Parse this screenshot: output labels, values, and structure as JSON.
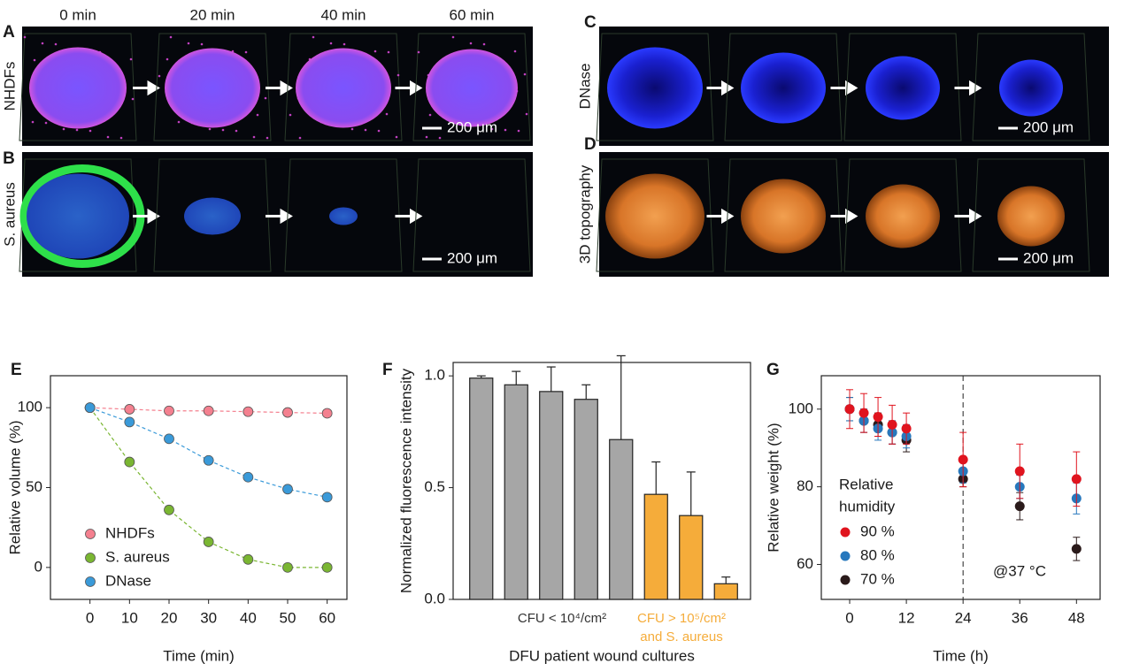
{
  "image_panels": {
    "time_labels": [
      "0 min",
      "20 min",
      "40 min",
      "60 min"
    ],
    "panels": [
      {
        "letter": "A",
        "row_label": "NHDFs",
        "scale_bar": "200 μm"
      },
      {
        "letter": "B",
        "row_label": "S. aureus",
        "scale_bar": "200 μm"
      },
      {
        "letter": "C",
        "row_label": "DNase",
        "scale_bar": "200 μm"
      },
      {
        "letter": "D",
        "row_label": "3D topography",
        "scale_bar": "200 μm"
      }
    ]
  },
  "chart_data": [
    {
      "type": "line",
      "letter": "E",
      "xlabel": "Time (min)",
      "ylabel": "Relative volume (%)",
      "x": [
        0,
        10,
        20,
        30,
        40,
        50,
        60
      ],
      "xlim": [
        -10,
        65
      ],
      "xticks": [
        0,
        10,
        20,
        30,
        40,
        50,
        60
      ],
      "ylim": [
        -20,
        120
      ],
      "yticks": [
        0,
        50,
        100
      ],
      "line_style": "dashed",
      "legend": "lower left",
      "series": [
        {
          "name": "NHDFs",
          "color": "#f4808f",
          "values": [
            100,
            99,
            98,
            98,
            97.5,
            97,
            96.5
          ]
        },
        {
          "name": "S. aureus",
          "color": "#7ab632",
          "values": [
            100,
            66,
            36,
            16,
            5,
            0,
            0
          ]
        },
        {
          "name": "DNase",
          "color": "#3a9ad9",
          "values": [
            100,
            91,
            80.5,
            67,
            56.5,
            49,
            44
          ]
        }
      ]
    },
    {
      "type": "bar",
      "letter": "F",
      "xlabel": "DFU patient wound cultures",
      "ylabel": "Normalized fluorescence intensity",
      "categories": [
        null,
        null,
        null,
        null,
        null,
        null,
        null,
        null
      ],
      "values": [
        0.99,
        0.96,
        0.93,
        0.895,
        0.715,
        0.47,
        0.375,
        0.07
      ],
      "errors": [
        0.01,
        0.06,
        0.11,
        0.065,
        0.375,
        0.145,
        0.195,
        0.03
      ],
      "colors": [
        "#a6a6a6",
        "#a6a6a6",
        "#a6a6a6",
        "#a6a6a6",
        "#a6a6a6",
        "#f5ac3a",
        "#f5ac3a",
        "#f5ac3a"
      ],
      "ylim": [
        0,
        1.06
      ],
      "yticks": [
        {
          "value": 0,
          "label": "0.0"
        },
        {
          "value": 0.5,
          "label": "0.5"
        },
        {
          "value": 1,
          "label": "1.0"
        }
      ],
      "group_labels": [
        {
          "lines": [
            "CFU < 10⁴/cm²"
          ],
          "color": "#333333"
        },
        {
          "lines": [
            "CFU > 10⁵/cm²",
            "and S. aureus"
          ],
          "color": "#f5ac3a"
        }
      ]
    },
    {
      "type": "scatter",
      "letter": "G",
      "xlabel": "Time (h)",
      "ylabel": "Relative weight (%)",
      "x": [
        0,
        3,
        6,
        9,
        12,
        24,
        36,
        48
      ],
      "xlim": [
        -6,
        53
      ],
      "xticks": [
        0,
        12,
        24,
        36,
        48
      ],
      "ylim": [
        51,
        108.6
      ],
      "yticks": [
        60,
        80,
        100
      ],
      "vline": 24,
      "annotation": "@37 °C",
      "legend_title": [
        "Relative",
        "humidity"
      ],
      "legend": "lower left",
      "series": [
        {
          "name": "90 %",
          "color": "#e0141e",
          "values": [
            100,
            99,
            98,
            96,
            95,
            87,
            84,
            82
          ],
          "errors": [
            5,
            5,
            5,
            5,
            4,
            7,
            7,
            7
          ]
        },
        {
          "name": "80 %",
          "color": "#2778bd",
          "values": [
            100,
            97,
            95,
            94,
            93,
            84,
            80,
            77
          ],
          "errors": [
            3,
            3,
            3,
            3,
            3,
            3,
            3,
            4
          ]
        },
        {
          "name": "70 %",
          "color": "#2a1a1a",
          "values": [
            100,
            97,
            96,
            94,
            92,
            82,
            75,
            64
          ],
          "errors": [
            3,
            3,
            3,
            3,
            3,
            2,
            3.5,
            3
          ]
        }
      ]
    }
  ]
}
